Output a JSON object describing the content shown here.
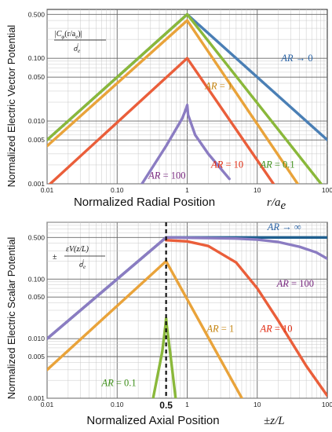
{
  "colors": {
    "blue": "#4a7fb5",
    "green": "#8ab83a",
    "orange": "#e9a33a",
    "red": "#ea5e3a",
    "purple": "#8b7cc2",
    "dark_blue": "#1f5f8f",
    "ann_blue": "#2a63a5",
    "ann_green": "#3e8f1a",
    "ann_orange": "#c48410",
    "ann_red": "#e02a10",
    "ann_purple": "#7a2a80"
  },
  "chart_data": [
    {
      "type": "line",
      "log_x": true,
      "log_y": true,
      "grid": true,
      "xlim": [
        0.01,
        100
      ],
      "ylim": [
        0.001,
        0.6
      ],
      "x_ticks": [
        "0.01",
        "0.10",
        "1",
        "10",
        "100"
      ],
      "y_ticks": [
        "0.001",
        "0.005",
        "0.010",
        "0.050",
        "0.100",
        "0.500"
      ],
      "ylabel": "Normalized Electric Vector Potential",
      "xlabel": "Normalized Radial Position",
      "xvar_main": "r/a",
      "xvar_sub": "e",
      "formula": {
        "top_pre": "|C",
        "top_sub": "φ",
        "top_post": "(r/a",
        "top_sub2": "e",
        "top_end": ")|",
        "bottom": "σ",
        "bottom_sub": "e",
        "bottom_sup": "i"
      },
      "series": [
        {
          "name": "AR → 0",
          "color_key": "blue",
          "x": [
            0.01,
            1,
            100
          ],
          "y": [
            0.005,
            0.5,
            0.005
          ]
        },
        {
          "name": "AR = 0.1",
          "color_key": "green",
          "x": [
            0.01,
            1,
            100
          ],
          "y": [
            0.005,
            0.5,
            0.00075
          ]
        },
        {
          "name": "AR = 1",
          "color_key": "orange",
          "x": [
            0.01,
            1,
            100
          ],
          "y": [
            0.004,
            0.4,
            0.0002
          ]
        },
        {
          "name": "AR = 10",
          "color_key": "red",
          "x": [
            0.01,
            1,
            40
          ],
          "y": [
            0.0009,
            0.1,
            0.00025
          ]
        },
        {
          "name": "AR = 100",
          "color_key": "purple",
          "x": [
            0.09,
            0.5,
            0.85,
            0.97,
            1,
            1.03,
            1.3,
            2,
            4
          ],
          "y": [
            0.0002,
            0.004,
            0.011,
            0.016,
            0.018,
            0.0125,
            0.006,
            0.003,
            0.0012
          ]
        }
      ],
      "annotations": [
        {
          "lead": "AR",
          "rest": " → 0",
          "color_key": "ann_blue",
          "x": 22,
          "y": 0.09
        },
        {
          "lead": "AR",
          "rest": " = 1",
          "color_key": "ann_orange",
          "x": 1.8,
          "y": 0.032
        },
        {
          "lead": "AR",
          "rest": " = 10",
          "color_key": "ann_red",
          "x": 2.2,
          "y": 0.0018
        },
        {
          "lead": "AR",
          "rest": " = 0.1",
          "color_key": "ann_green",
          "x": 11,
          "y": 0.0018
        },
        {
          "lead": "AR",
          "rest": " = 100",
          "color_key": "ann_purple",
          "x": 0.28,
          "y": 0.0012
        }
      ]
    },
    {
      "type": "line",
      "log_x": true,
      "log_y": true,
      "grid": true,
      "xlim": [
        0.01,
        100
      ],
      "ylim": [
        0.001,
        0.9
      ],
      "x_ticks": [
        "0.01",
        "0.10",
        "1",
        "10",
        "100"
      ],
      "y_ticks": [
        "0.001",
        "0.005",
        "0.010",
        "0.050",
        "0.100",
        "0.500"
      ],
      "ylabel": "Normalized Electric Scalar Potential",
      "xlabel": "Normalized Axial Position",
      "xvar_main": "±z/L",
      "half_marker": {
        "x": 0.5,
        "label": "0.5"
      },
      "formula": {
        "pm": "±",
        "top": "εV(z/L)",
        "bottom": "σ",
        "bottom_sub": "e",
        "bottom_sup": "i"
      },
      "series": [
        {
          "name": "AR → ∞",
          "color_key": "dark_blue",
          "x": [
            0.01,
            0.5,
            100
          ],
          "y": [
            0.01,
            0.5,
            0.5
          ]
        },
        {
          "name": "AR = 100",
          "color_key": "purple",
          "x": [
            0.01,
            0.5,
            2,
            5,
            10,
            20,
            40,
            70,
            100
          ],
          "y": [
            0.01,
            0.5,
            0.49,
            0.48,
            0.46,
            0.42,
            0.35,
            0.28,
            0.22
          ]
        },
        {
          "name": "AR = 10",
          "color_key": "red",
          "x": [
            0.5,
            1,
            2,
            5,
            10,
            20,
            50,
            100
          ],
          "y": [
            0.45,
            0.43,
            0.36,
            0.19,
            0.07,
            0.02,
            0.0035,
            0.0011
          ]
        },
        {
          "name": "AR = 1",
          "color_key": "orange",
          "x": [
            0.01,
            0.5,
            8
          ],
          "y": [
            0.003,
            0.2,
            0.00055
          ]
        },
        {
          "name": "AR = 0.1",
          "color_key": "green",
          "x": [
            0.28,
            0.44,
            0.49,
            0.5,
            0.51,
            0.57,
            0.75
          ],
          "y": [
            0.0004,
            0.006,
            0.017,
            0.022,
            0.017,
            0.006,
            0.0004
          ]
        }
      ],
      "annotations": [
        {
          "lead": "AR",
          "rest": " → ∞",
          "color_key": "ann_blue",
          "x": 14,
          "y": 0.66
        },
        {
          "lead": "AR",
          "rest": " = 100",
          "color_key": "ann_purple",
          "x": 19,
          "y": 0.075
        },
        {
          "lead": "AR",
          "rest": " = 1",
          "color_key": "ann_orange",
          "x": 1.9,
          "y": 0.013
        },
        {
          "lead": "AR",
          "rest": " = 10",
          "color_key": "ann_red",
          "x": 11,
          "y": 0.013
        },
        {
          "lead": "AR",
          "rest": " = 0.1",
          "color_key": "ann_green",
          "x": 0.06,
          "y": 0.0016
        }
      ]
    }
  ]
}
